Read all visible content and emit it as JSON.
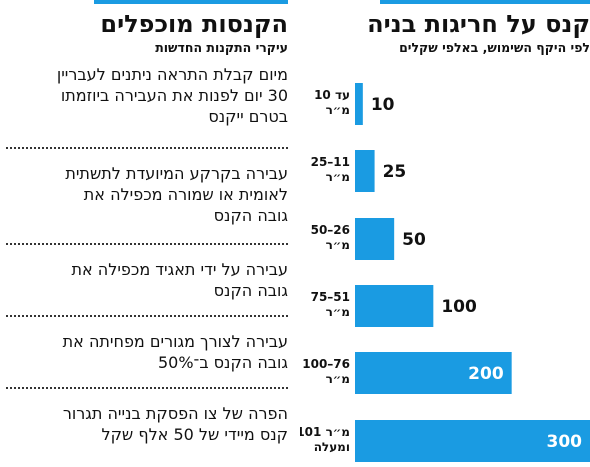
{
  "chart_data": {
    "type": "bar",
    "orientation": "horizontal",
    "title": "קנס על חריגות בניה",
    "subtitle": "לפי היקף השימוש, באלפי שקלים",
    "categories": [
      [
        "עד 10",
        "מ״ר"
      ],
      [
        "25–11",
        "מ״ר"
      ],
      [
        "50–26",
        "מ״ר"
      ],
      [
        "75–51",
        "מ״ר"
      ],
      [
        "100–76",
        "מ״ר"
      ],
      [
        "101 מ״ר",
        "ומעלה"
      ]
    ],
    "values": [
      10,
      25,
      50,
      100,
      200,
      300
    ],
    "value_labels": [
      "10",
      "25",
      "50",
      "100",
      "200",
      "300"
    ],
    "xlim": [
      0,
      300
    ],
    "bar_color": "#1a9be2",
    "grid": false,
    "legend": "none"
  },
  "rules_panel": {
    "title": "הקנסות מוכפלים",
    "subtitle": "עיקרי התקנות החדשות",
    "items": [
      [
        "מיום קבלת התראה ניתנים לעבריין",
        "30 יום לפנות את העבירה ביוזמתו",
        "בטרם ייקנס"
      ],
      [
        "עבירה בקרקע המיועדת לתשתית",
        "לאומית או שמורה מכפילה את",
        "גובה הקנס"
      ],
      [
        "עבירה על ידי תאגיד מכפילה את",
        "גובה הקנס"
      ],
      [
        "עבירה לצורך מגורים מפחיתה את",
        "גובה הקנס ב־50%"
      ],
      [
        "הפרה של צו הפסקת בנייה תגרור",
        "קנס מיידי של 50 אלף שקל"
      ]
    ]
  },
  "accent_color": "#1a9be2"
}
